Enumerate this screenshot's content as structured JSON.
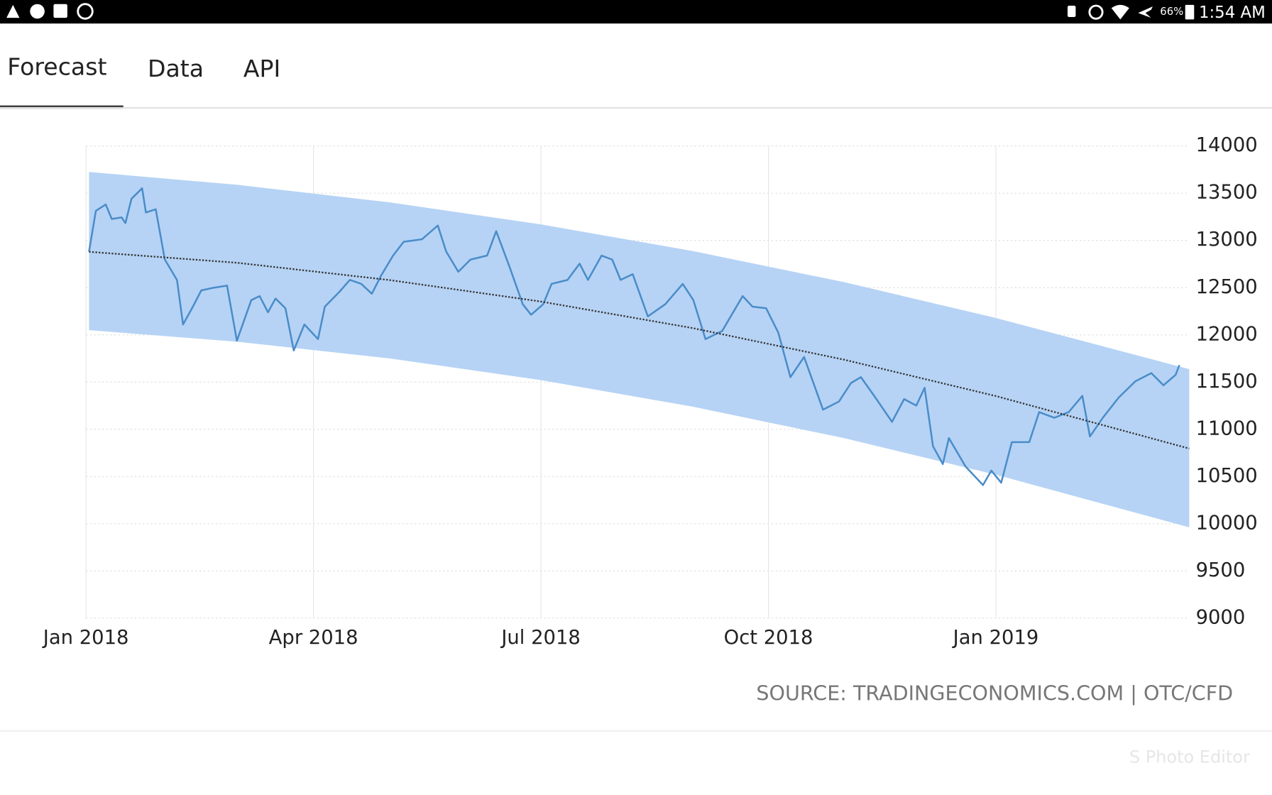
{
  "status_bar": {
    "battery": "66%",
    "time": "1:54 AM"
  },
  "tabs": [
    "Forecast",
    "Data",
    "API"
  ],
  "chart_data": {
    "type": "line",
    "xlim": [
      0,
      14.55
    ],
    "ylim": [
      9000,
      14000
    ],
    "yticks": [
      9000,
      9500,
      10000,
      10500,
      11000,
      11500,
      12000,
      12500,
      13000,
      13500,
      14000
    ],
    "xticks": [
      {
        "value": 0,
        "label": "Jan 2018"
      },
      {
        "value": 3,
        "label": "Apr 2018"
      },
      {
        "value": 6,
        "label": "Jul 2018"
      },
      {
        "value": 9,
        "label": "Oct 2018"
      },
      {
        "value": 12,
        "label": "Jan 2019"
      }
    ],
    "grid": true,
    "x": [
      0.04,
      0.13,
      0.26,
      0.34,
      0.47,
      0.52,
      0.6,
      0.74,
      0.79,
      0.92,
      1.04,
      1.2,
      1.28,
      1.41,
      1.52,
      1.67,
      1.86,
      1.99,
      2.18,
      2.29,
      2.4,
      2.5,
      2.63,
      2.74,
      2.88,
      3.06,
      3.15,
      3.34,
      3.48,
      3.63,
      3.77,
      3.89,
      4.05,
      4.19,
      4.43,
      4.64,
      4.75,
      4.91,
      5.07,
      5.29,
      5.41,
      5.59,
      5.76,
      5.87,
      6.03,
      6.14,
      6.35,
      6.51,
      6.62,
      6.8,
      6.94,
      7.05,
      7.21,
      7.41,
      7.64,
      7.87,
      8.01,
      8.17,
      8.39,
      8.66,
      8.79,
      8.97,
      9.13,
      9.29,
      9.47,
      9.72,
      9.93,
      10.09,
      10.22,
      10.41,
      10.63,
      10.79,
      10.95,
      11.06,
      11.17,
      11.3,
      11.38,
      11.6,
      11.83,
      11.94,
      12.07,
      12.21,
      12.44,
      12.57,
      12.77,
      12.96,
      13.14,
      13.24,
      13.41,
      13.62,
      13.84,
      14.05,
      14.21,
      14.37,
      14.42
    ],
    "series": [
      {
        "color": "#4a8cc9",
        "values": [
          12883,
          13313,
          13381,
          13227,
          13244,
          13184,
          13441,
          13553,
          13296,
          13330,
          12797,
          12582,
          12110,
          12299,
          12471,
          12497,
          12522,
          11938,
          12368,
          12411,
          12239,
          12385,
          12282,
          11835,
          12110,
          11955,
          12299,
          12454,
          12582,
          12540,
          12436,
          12625,
          12840,
          12986,
          13012,
          13158,
          12883,
          12668,
          12797,
          12840,
          13098,
          12711,
          12325,
          12213,
          12325,
          12540,
          12582,
          12754,
          12582,
          12840,
          12797,
          12582,
          12643,
          12196,
          12325,
          12540,
          12368,
          11955,
          12041,
          12411,
          12299,
          12282,
          12024,
          11552,
          11766,
          11208,
          11294,
          11491,
          11552,
          11337,
          11079,
          11320,
          11251,
          11440,
          10821,
          10632,
          10907,
          10606,
          10409,
          10563,
          10434,
          10864,
          10864,
          11182,
          11122,
          11182,
          11354,
          10924,
          11122,
          11337,
          11509,
          11595,
          11466,
          11577,
          11680
        ]
      }
    ],
    "band": {
      "color": "#b6d3f5",
      "x": [
        0.04,
        2,
        4,
        6,
        8,
        10,
        12,
        14.55
      ],
      "upper": [
        13725,
        13589,
        13404,
        13170,
        12888,
        12558,
        12179,
        11637
      ],
      "lower": [
        12050,
        11927,
        11751,
        11521,
        11240,
        10906,
        10519,
        9962
      ]
    },
    "trend": {
      "color": "#333333",
      "x": [
        0.04,
        2,
        4,
        6,
        8,
        10,
        12,
        14.55
      ],
      "values": [
        12880,
        12763,
        12581,
        12353,
        12072,
        11737,
        11352,
        10796
      ]
    },
    "source": "SOURCE: TRADINGECONOMICS.COM | OTC/CFD"
  },
  "watermark": "S Photo Editor"
}
